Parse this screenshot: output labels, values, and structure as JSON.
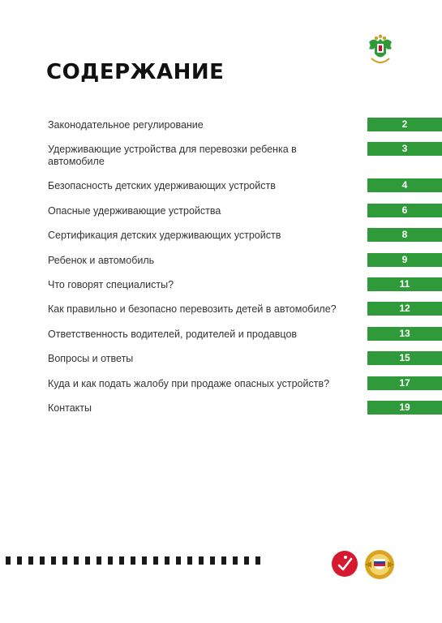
{
  "title": "СОДЕРЖАНИЕ",
  "toc": [
    {
      "label": "Законодательное регулирование",
      "page": "2"
    },
    {
      "label": "Удерживающие устройства для перевозки ребенка в автомобиле",
      "page": "3"
    },
    {
      "label": "Безопасность детских удерживающих устройств",
      "page": "4"
    },
    {
      "label": "Опасные удерживающие устройства",
      "page": "6"
    },
    {
      "label": "Сертификация детских удерживающих устройств",
      "page": "8"
    },
    {
      "label": "Ребенок и автомобиль",
      "page": "9"
    },
    {
      "label": "Что говорят специалисты?",
      "page": "11"
    },
    {
      "label": "Как правильно и безопасно перевозить детей в автомобиле?",
      "page": "12"
    },
    {
      "label": "Ответственность водителей, родителей и продавцов",
      "page": "13"
    },
    {
      "label": "Вопросы и ответы",
      "page": "15"
    },
    {
      "label": "Куда и как подать жалобу при продаже опасных устройств?",
      "page": "17"
    },
    {
      "label": "Контакты",
      "page": "19"
    }
  ],
  "icons": {
    "top_emblem": "coat-of-arms-icon",
    "bottom_left_logo": "sovet-logo-icon",
    "bottom_right_logo": "traffic-police-emblem-icon"
  },
  "colors": {
    "accent": "#2e9a3a",
    "text": "#333333",
    "title": "#111111"
  }
}
